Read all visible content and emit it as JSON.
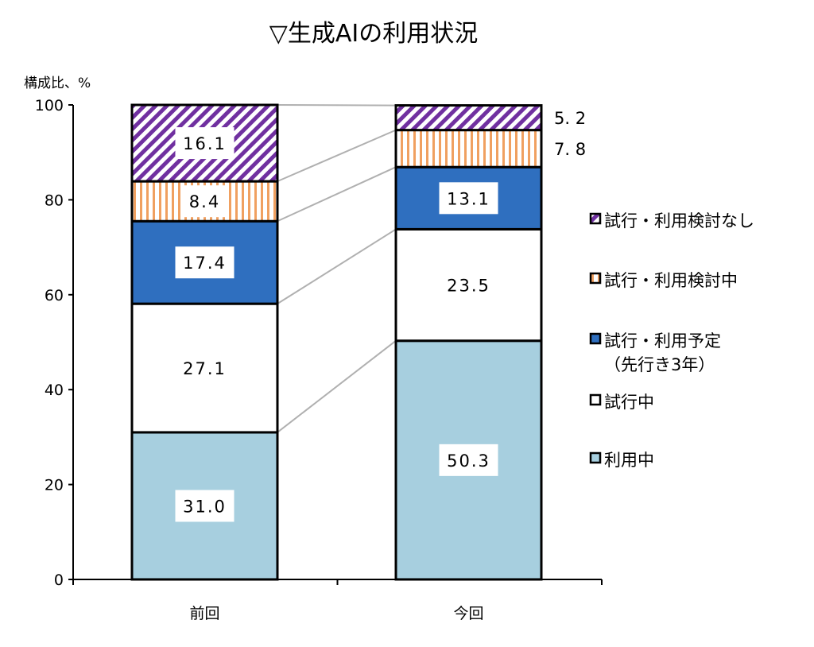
{
  "chart_data": {
    "type": "bar",
    "stacked": true,
    "title": "▽生成AIの利用状況",
    "ylabel": "構成比、%",
    "xlabel": "",
    "ylim": [
      0,
      100
    ],
    "yticks": [
      0,
      20,
      40,
      60,
      80,
      100
    ],
    "grid": false,
    "legend_position": "right",
    "categories": [
      "前回",
      "今回"
    ],
    "series": [
      {
        "name": "利用中",
        "values": [
          31.0,
          50.3
        ],
        "labels": [
          "31.0",
          "50.3"
        ],
        "color": "#a7cfdf",
        "pattern": "solid"
      },
      {
        "name": "試行中",
        "values": [
          27.1,
          23.5
        ],
        "labels": [
          "27.1",
          "23.5"
        ],
        "color": "#ffffff",
        "pattern": "solid"
      },
      {
        "name": "試行・利用予定\n（先行き3年）",
        "values": [
          17.4,
          13.1
        ],
        "labels": [
          "17.4",
          "13.1"
        ],
        "color": "#2f6fbf",
        "pattern": "solid"
      },
      {
        "name": "試行・利用検討中",
        "values": [
          8.4,
          7.8
        ],
        "labels": [
          "8.4",
          "7.8"
        ],
        "color": "#f0a060",
        "pattern": "vertical-stripes"
      },
      {
        "name": "試行・利用検討なし",
        "values": [
          16.1,
          5.2
        ],
        "labels": [
          "16.1",
          "5.2"
        ],
        "color": "#7030a0",
        "pattern": "diagonal-hatch"
      }
    ]
  }
}
